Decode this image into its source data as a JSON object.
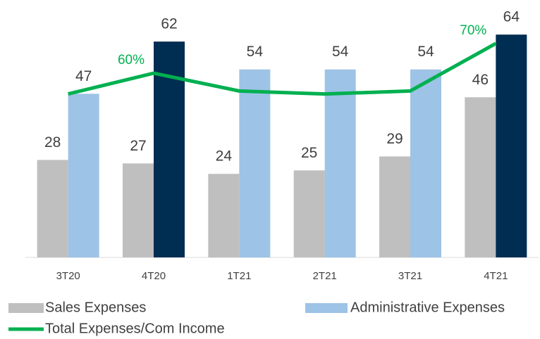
{
  "chart_data": {
    "type": "bar",
    "categories": [
      "3T20",
      "4T20",
      "1T21",
      "2T21",
      "3T21",
      "4T21"
    ],
    "series": [
      {
        "name": "Sales Expenses",
        "color": "#bfbfbf",
        "values": [
          28,
          27,
          24,
          25,
          29,
          46
        ]
      },
      {
        "name": "Administrative Expenses",
        "color": "#9dc3e6",
        "colors": [
          "#9dc3e6",
          "#002d52",
          "#9dc3e6",
          "#9dc3e6",
          "#9dc3e6",
          "#002d52"
        ],
        "values": [
          47,
          62,
          54,
          54,
          54,
          64
        ]
      },
      {
        "name": "Total Expenses/Com Income",
        "type": "line",
        "axis": "y2",
        "color": "#00b050",
        "values": [
          53,
          60,
          54,
          53,
          54,
          70
        ],
        "value_labels": [
          null,
          "60%",
          null,
          null,
          null,
          "70%"
        ]
      }
    ],
    "ylim": [
      0,
      70
    ],
    "y2lim": [
      -2,
      80
    ],
    "grid": false
  }
}
